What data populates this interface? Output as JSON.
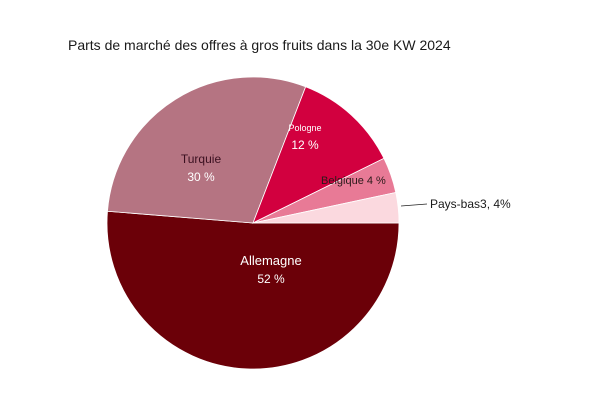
{
  "chart_data": {
    "type": "pie",
    "title": "Parts de marché des offres à gros fruits dans la 30e KW 2024",
    "slices": [
      {
        "name": "Allemagne",
        "value": 52,
        "value_label": "52 %",
        "color": "#6b0008",
        "label_color": "#ffffff"
      },
      {
        "name": "Turquie",
        "value": 30,
        "value_label": "30 %",
        "color": "#b57482",
        "label_color": "#3a1020"
      },
      {
        "name": "Pologne",
        "value": 12,
        "value_label": "12 %",
        "color": "#d2003f",
        "label_color": "#ffffff"
      },
      {
        "name": "Belgique",
        "value": 4,
        "value_label": "Belgique 4 %",
        "color": "#e87a96",
        "label_color": "#2a1a1a"
      },
      {
        "name": "Pays-bas",
        "value": 3.4,
        "value_label": "Pays-bas3, 4%",
        "color": "#fbd9df",
        "label_color": "#1a1a1a"
      }
    ],
    "start_angle_deg": 0,
    "direction": "clockwise"
  }
}
